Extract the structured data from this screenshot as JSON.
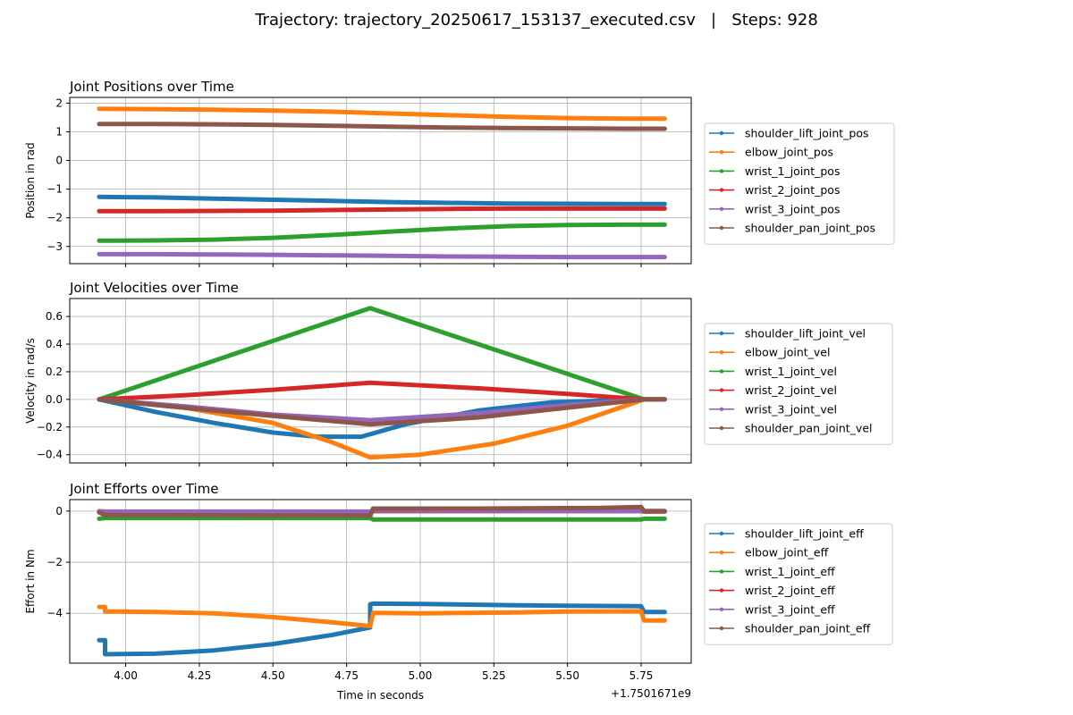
{
  "figure_title": "Trajectory: trajectory_20250617_153137_executed.csv   |   Steps: 928",
  "x_axis": {
    "label": "Time in seconds",
    "offset_text": "+1.7501671e9",
    "ticks": [
      4.0,
      4.25,
      4.5,
      4.75,
      5.0,
      5.25,
      5.5,
      5.75
    ],
    "tick_labels": [
      "4.00",
      "4.25",
      "4.50",
      "4.75",
      "5.00",
      "5.25",
      "5.50",
      "5.75"
    ],
    "xlim": [
      3.81,
      5.92
    ]
  },
  "colors": {
    "shoulder_lift": "#1f77b4",
    "elbow": "#ff7f0e",
    "wrist_1": "#2ca02c",
    "wrist_2": "#d62728",
    "wrist_3": "#9467bd",
    "shoulder_pan": "#8c564b"
  },
  "chart_data": [
    {
      "type": "line",
      "title": "Joint Positions over Time",
      "ylabel": "Position in rad",
      "xlabel": "",
      "ylim": [
        -3.6,
        2.2
      ],
      "yticks": [
        2,
        1,
        0,
        -1,
        -2,
        -3
      ],
      "ytick_labels": [
        "2",
        "1",
        "0",
        "−1",
        "−2",
        "−3"
      ],
      "grid": true,
      "legend_position": "right",
      "series": [
        {
          "name": "shoulder_lift_joint_pos",
          "color_key": "shoulder_lift",
          "x": [
            3.91,
            4.1,
            4.3,
            4.5,
            4.7,
            4.9,
            5.1,
            5.3,
            5.5,
            5.7,
            5.83
          ],
          "y": [
            -1.27,
            -1.29,
            -1.33,
            -1.37,
            -1.41,
            -1.45,
            -1.48,
            -1.5,
            -1.51,
            -1.52,
            -1.52
          ]
        },
        {
          "name": "elbow_joint_pos",
          "color_key": "elbow",
          "x": [
            3.91,
            4.1,
            4.3,
            4.5,
            4.7,
            4.9,
            5.1,
            5.3,
            5.5,
            5.7,
            5.83
          ],
          "y": [
            1.8,
            1.79,
            1.77,
            1.74,
            1.7,
            1.64,
            1.58,
            1.52,
            1.48,
            1.46,
            1.46
          ]
        },
        {
          "name": "wrist_1_joint_pos",
          "color_key": "wrist_1",
          "x": [
            3.91,
            4.1,
            4.3,
            4.5,
            4.7,
            4.9,
            5.1,
            5.3,
            5.5,
            5.7,
            5.83
          ],
          "y": [
            -2.8,
            -2.79,
            -2.76,
            -2.7,
            -2.6,
            -2.48,
            -2.37,
            -2.29,
            -2.25,
            -2.24,
            -2.24
          ]
        },
        {
          "name": "wrist_2_joint_pos",
          "color_key": "wrist_2",
          "x": [
            3.91,
            4.1,
            4.3,
            4.5,
            4.7,
            4.9,
            5.1,
            5.3,
            5.5,
            5.7,
            5.83
          ],
          "y": [
            -1.77,
            -1.77,
            -1.76,
            -1.75,
            -1.73,
            -1.71,
            -1.69,
            -1.68,
            -1.68,
            -1.68,
            -1.68
          ]
        },
        {
          "name": "wrist_3_joint_pos",
          "color_key": "wrist_3",
          "x": [
            3.91,
            4.1,
            4.3,
            4.5,
            4.7,
            4.9,
            5.1,
            5.3,
            5.5,
            5.7,
            5.83
          ],
          "y": [
            -3.27,
            -3.27,
            -3.28,
            -3.29,
            -3.31,
            -3.33,
            -3.35,
            -3.36,
            -3.37,
            -3.37,
            -3.37
          ]
        },
        {
          "name": "shoulder_pan_joint_pos",
          "color_key": "shoulder_pan",
          "x": [
            3.91,
            4.1,
            4.3,
            4.5,
            4.7,
            4.9,
            5.1,
            5.3,
            5.5,
            5.7,
            5.83
          ],
          "y": [
            1.27,
            1.27,
            1.26,
            1.24,
            1.21,
            1.18,
            1.15,
            1.13,
            1.12,
            1.11,
            1.11
          ]
        }
      ]
    },
    {
      "type": "line",
      "title": "Joint Velocities over Time",
      "ylabel": "Velocity in rad/s",
      "xlabel": "",
      "ylim": [
        -0.46,
        0.73
      ],
      "yticks": [
        0.6,
        0.4,
        0.2,
        0.0,
        -0.2,
        -0.4
      ],
      "ytick_labels": [
        "0.6",
        "0.4",
        "0.2",
        "0.0",
        "−0.2",
        "−0.4"
      ],
      "grid": true,
      "legend_position": "right",
      "series": [
        {
          "name": "shoulder_lift_joint_vel",
          "color_key": "shoulder_lift",
          "x": [
            3.91,
            4.1,
            4.3,
            4.5,
            4.65,
            4.8,
            4.95,
            5.2,
            5.45,
            5.76,
            5.83
          ],
          "y": [
            0.0,
            -0.09,
            -0.17,
            -0.24,
            -0.27,
            -0.27,
            -0.18,
            -0.08,
            -0.02,
            0.0,
            0.0
          ]
        },
        {
          "name": "elbow_joint_vel",
          "color_key": "elbow",
          "x": [
            3.91,
            4.2,
            4.5,
            4.7,
            4.83,
            5.0,
            5.25,
            5.5,
            5.76,
            5.83
          ],
          "y": [
            0.0,
            -0.06,
            -0.17,
            -0.31,
            -0.42,
            -0.4,
            -0.32,
            -0.19,
            0.0,
            0.0
          ]
        },
        {
          "name": "wrist_1_joint_vel",
          "color_key": "wrist_1",
          "x": [
            3.91,
            4.83,
            5.76,
            5.83
          ],
          "y": [
            0.0,
            0.66,
            0.0,
            0.0
          ]
        },
        {
          "name": "wrist_2_joint_vel",
          "color_key": "wrist_2",
          "x": [
            3.91,
            4.2,
            4.5,
            4.83,
            5.2,
            5.5,
            5.76,
            5.83
          ],
          "y": [
            0.0,
            0.03,
            0.07,
            0.12,
            0.08,
            0.04,
            0.0,
            0.0
          ]
        },
        {
          "name": "wrist_3_joint_vel",
          "color_key": "wrist_3",
          "x": [
            3.91,
            4.2,
            4.5,
            4.83,
            5.2,
            5.5,
            5.76,
            5.83
          ],
          "y": [
            0.0,
            -0.05,
            -0.11,
            -0.15,
            -0.1,
            -0.04,
            0.0,
            0.0
          ]
        },
        {
          "name": "shoulder_pan_joint_vel",
          "color_key": "shoulder_pan",
          "x": [
            3.91,
            4.2,
            4.5,
            4.83,
            5.2,
            5.5,
            5.76,
            5.83
          ],
          "y": [
            0.0,
            -0.06,
            -0.12,
            -0.18,
            -0.13,
            -0.06,
            0.0,
            0.0
          ]
        }
      ]
    },
    {
      "type": "line",
      "title": "Joint Efforts over Time",
      "ylabel": "Effort in Nm",
      "xlabel": "Time in seconds",
      "ylim": [
        -5.95,
        0.45
      ],
      "yticks": [
        0,
        -2,
        -4
      ],
      "ytick_labels": [
        "0",
        "−2",
        "−4"
      ],
      "grid": true,
      "legend_position": "right",
      "series": [
        {
          "name": "shoulder_lift_joint_eff",
          "color_key": "shoulder_lift",
          "x": [
            3.91,
            3.93,
            3.93,
            4.1,
            4.3,
            4.5,
            4.7,
            4.83,
            4.83,
            4.84,
            5.0,
            5.3,
            5.5,
            5.75,
            5.76,
            5.83
          ],
          "y": [
            -5.05,
            -5.05,
            -5.6,
            -5.58,
            -5.45,
            -5.2,
            -4.85,
            -4.55,
            -3.65,
            -3.62,
            -3.63,
            -3.68,
            -3.7,
            -3.72,
            -3.95,
            -3.95
          ]
        },
        {
          "name": "elbow_joint_eff",
          "color_key": "elbow",
          "x": [
            3.91,
            3.93,
            3.93,
            4.1,
            4.3,
            4.5,
            4.7,
            4.83,
            4.83,
            4.84,
            5.0,
            5.3,
            5.5,
            5.75,
            5.76,
            5.83
          ],
          "y": [
            -3.75,
            -3.75,
            -3.93,
            -3.95,
            -4.0,
            -4.15,
            -4.35,
            -4.5,
            -4.5,
            -3.98,
            -4.0,
            -3.97,
            -3.93,
            -3.92,
            -4.28,
            -4.28
          ]
        },
        {
          "name": "wrist_1_joint_eff",
          "color_key": "wrist_1",
          "x": [
            3.91,
            3.93,
            4.83,
            4.84,
            5.75,
            5.76,
            5.83
          ],
          "y": [
            -0.3,
            -0.27,
            -0.27,
            -0.33,
            -0.33,
            -0.3,
            -0.3
          ]
        },
        {
          "name": "wrist_2_joint_eff",
          "color_key": "wrist_2",
          "x": [
            3.91,
            3.93,
            4.83,
            4.84,
            5.75,
            5.76,
            5.83
          ],
          "y": [
            -0.03,
            -0.05,
            -0.06,
            0.0,
            0.0,
            -0.02,
            -0.02
          ]
        },
        {
          "name": "wrist_3_joint_eff",
          "color_key": "wrist_3",
          "x": [
            3.91,
            3.93,
            4.83,
            4.84,
            5.75,
            5.76,
            5.83
          ],
          "y": [
            0.0,
            -0.02,
            -0.02,
            0.03,
            0.0,
            0.0,
            0.0
          ]
        },
        {
          "name": "shoulder_pan_joint_eff",
          "color_key": "shoulder_pan",
          "x": [
            3.91,
            3.93,
            4.83,
            4.84,
            5.2,
            5.6,
            5.75,
            5.76,
            5.83
          ],
          "y": [
            -0.05,
            -0.15,
            -0.18,
            0.1,
            0.1,
            0.12,
            0.16,
            0.0,
            0.0
          ]
        }
      ]
    }
  ]
}
